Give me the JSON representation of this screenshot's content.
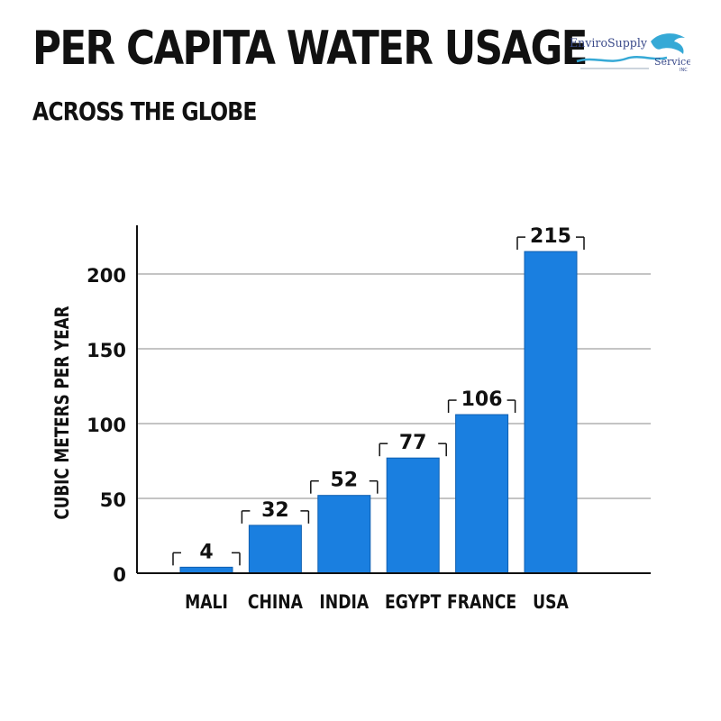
{
  "header": {
    "title": "PER CAPITA WATER USAGE",
    "subtitle": "ACROSS THE GLOBE"
  },
  "logo": {
    "line1": "EnviroSupply",
    "line2": "Service",
    "line3": "INC"
  },
  "colors": {
    "bar": "#1a7fe0",
    "bar_edge": "#0f5fb0",
    "grid": "#888888",
    "axis": "#111111"
  },
  "chart_data": {
    "type": "bar",
    "title": "PER CAPITA WATER USAGE",
    "subtitle": "ACROSS THE GLOBE",
    "xlabel": "",
    "ylabel": "CUBIC METERS PER YEAR",
    "categories": [
      "MALI",
      "CHINA",
      "INDIA",
      "EGYPT",
      "FRANCE",
      "USA"
    ],
    "values": [
      4,
      32,
      52,
      77,
      106,
      215
    ],
    "value_labels": [
      "4",
      "32",
      "52",
      "77",
      "106",
      "215"
    ],
    "yticks": [
      0,
      50,
      100,
      150,
      200
    ],
    "ytick_labels": [
      "0",
      "50",
      "100",
      "150",
      "200"
    ],
    "ylim": [
      0,
      230
    ],
    "grid": true
  }
}
